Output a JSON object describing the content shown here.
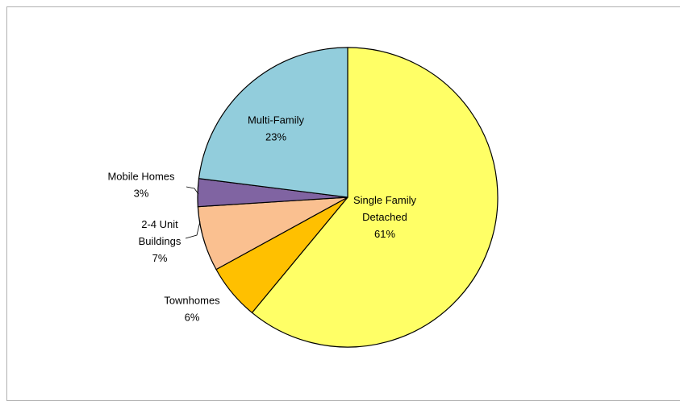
{
  "chart_data": {
    "type": "pie",
    "title": "",
    "slices": [
      {
        "label": [
          "Single Family",
          "Detached"
        ],
        "percent_label": "61%",
        "value": 61,
        "color": "#FFFF66"
      },
      {
        "label": [
          "Townhomes"
        ],
        "percent_label": "6%",
        "value": 6,
        "color": "#FFC000"
      },
      {
        "label": [
          "2-4 Unit",
          "Buildings"
        ],
        "percent_label": "7%",
        "value": 7,
        "color": "#FAC090"
      },
      {
        "label": [
          "Mobile Homes"
        ],
        "percent_label": "3%",
        "value": 3,
        "color": "#8064A2"
      },
      {
        "label": [
          "Multi-Family"
        ],
        "percent_label": "23%",
        "value": 23,
        "color": "#92CDDC"
      }
    ],
    "start_angle_deg": 0,
    "direction": "clockwise",
    "outline_color": "#000000"
  }
}
